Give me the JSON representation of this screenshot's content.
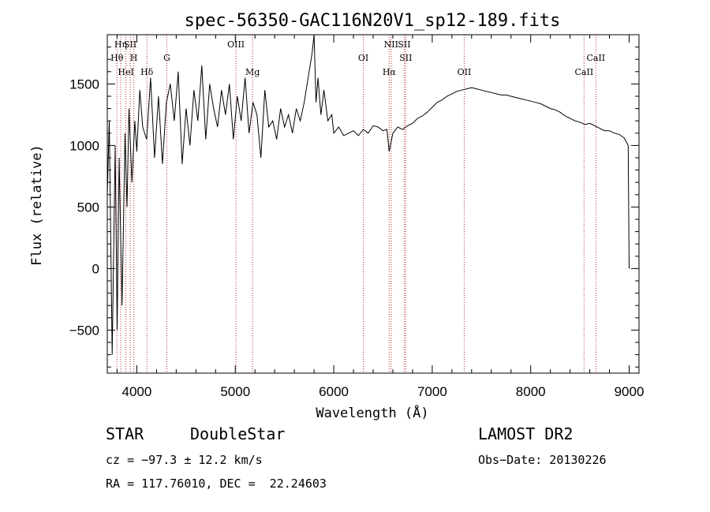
{
  "chart_data": {
    "type": "line",
    "title": "spec-56350-GAC116N20V1_sp12-189.fits",
    "xlabel": "Wavelength (Å)",
    "ylabel": "Flux (relative)",
    "xlim": [
      3700,
      9100
    ],
    "ylim": [
      -850,
      1900
    ],
    "xticks": [
      4000,
      5000,
      6000,
      7000,
      8000,
      9000
    ],
    "yticks": [
      -500,
      0,
      500,
      1000,
      1500
    ],
    "grid": false,
    "series": [
      {
        "x": [
          3700,
          3720,
          3750,
          3780,
          3800,
          3820,
          3850,
          3880,
          3900,
          3920,
          3950,
          3980,
          4000,
          4030,
          4060,
          4100,
          4140,
          4180,
          4220,
          4260,
          4300,
          4340,
          4380,
          4420,
          4460,
          4500,
          4540,
          4580,
          4620,
          4660,
          4700,
          4740,
          4780,
          4820,
          4860,
          4900,
          4940,
          4980,
          5020,
          5060,
          5100,
          5140,
          5180,
          5220,
          5260,
          5300,
          5340,
          5380,
          5420,
          5460,
          5500,
          5540,
          5580,
          5620,
          5660,
          5700,
          5740,
          5780,
          5800,
          5820,
          5840,
          5870,
          5900,
          5940,
          5980,
          6000,
          6050,
          6100,
          6150,
          6200,
          6250,
          6300,
          6350,
          6400,
          6450,
          6500,
          6540,
          6563,
          6600,
          6650,
          6700,
          6750,
          6800,
          6850,
          6900,
          6950,
          7000,
          7050,
          7100,
          7150,
          7200,
          7250,
          7300,
          7350,
          7400,
          7450,
          7500,
          7550,
          7600,
          7650,
          7700,
          7750,
          7800,
          7850,
          7900,
          7950,
          8000,
          8050,
          8100,
          8150,
          8200,
          8250,
          8300,
          8350,
          8400,
          8450,
          8500,
          8550,
          8600,
          8650,
          8700,
          8750,
          8800,
          8850,
          8900,
          8950,
          8990,
          9000
        ],
        "y": [
          600,
          1200,
          -700,
          1000,
          -500,
          900,
          -300,
          1100,
          500,
          1300,
          700,
          1200,
          950,
          1450,
          1150,
          1050,
          1550,
          900,
          1400,
          850,
          1350,
          1500,
          1200,
          1600,
          850,
          1300,
          1000,
          1450,
          1200,
          1650,
          1050,
          1500,
          1300,
          1150,
          1450,
          1250,
          1500,
          1050,
          1400,
          1200,
          1550,
          1100,
          1350,
          1250,
          900,
          1450,
          1150,
          1200,
          1050,
          1300,
          1150,
          1250,
          1100,
          1300,
          1200,
          1350,
          1550,
          1750,
          1900,
          1350,
          1550,
          1250,
          1450,
          1200,
          1250,
          1100,
          1150,
          1080,
          1100,
          1120,
          1080,
          1130,
          1100,
          1160,
          1150,
          1120,
          1130,
          950,
          1100,
          1150,
          1130,
          1160,
          1180,
          1220,
          1240,
          1270,
          1310,
          1350,
          1370,
          1400,
          1420,
          1440,
          1450,
          1460,
          1470,
          1460,
          1450,
          1440,
          1430,
          1420,
          1410,
          1410,
          1400,
          1390,
          1380,
          1370,
          1360,
          1350,
          1340,
          1320,
          1300,
          1290,
          1270,
          1240,
          1220,
          1200,
          1190,
          1170,
          1180,
          1160,
          1140,
          1120,
          1120,
          1100,
          1090,
          1060,
          1000,
          0
        ]
      }
    ],
    "lines": [
      {
        "name": "Hη",
        "x": 3836,
        "row": 0
      },
      {
        "name": "Hθ",
        "x": 3798,
        "row": 1
      },
      {
        "name": "HeI",
        "x": 3889,
        "row": 2
      },
      {
        "name": "SII",
        "x": 3933,
        "row": 0
      },
      {
        "name": "H",
        "x": 3969,
        "row": 1
      },
      {
        "name": "Hδ",
        "x": 4102,
        "row": 2
      },
      {
        "name": "G",
        "x": 4305,
        "row": 1
      },
      {
        "name": "OIII",
        "x": 5007,
        "row": 0
      },
      {
        "name": "Mg",
        "x": 5175,
        "row": 2
      },
      {
        "name": "OI",
        "x": 6300,
        "row": 1
      },
      {
        "name": "NII",
        "x": 6583,
        "row": 0
      },
      {
        "name": "Hα",
        "x": 6563,
        "row": 2
      },
      {
        "name": "SII",
        "x": 6716,
        "row": 0
      },
      {
        "name": "SII",
        "x": 6731,
        "row": 1
      },
      {
        "name": "OII",
        "x": 7325,
        "row": 2
      },
      {
        "name": "CaII",
        "x": 8542,
        "row": 2
      },
      {
        "name": "CaII",
        "x": 8662,
        "row": 1
      }
    ]
  },
  "info": {
    "class": "STAR",
    "subclass": "DoubleStar",
    "survey": "LAMOST DR2",
    "cz": "cz = −97.3 ± 12.2 km/s",
    "obs_date": "Obs−Date: 20130226",
    "coords": "RA = 117.76010, DEC =  22.24603"
  }
}
